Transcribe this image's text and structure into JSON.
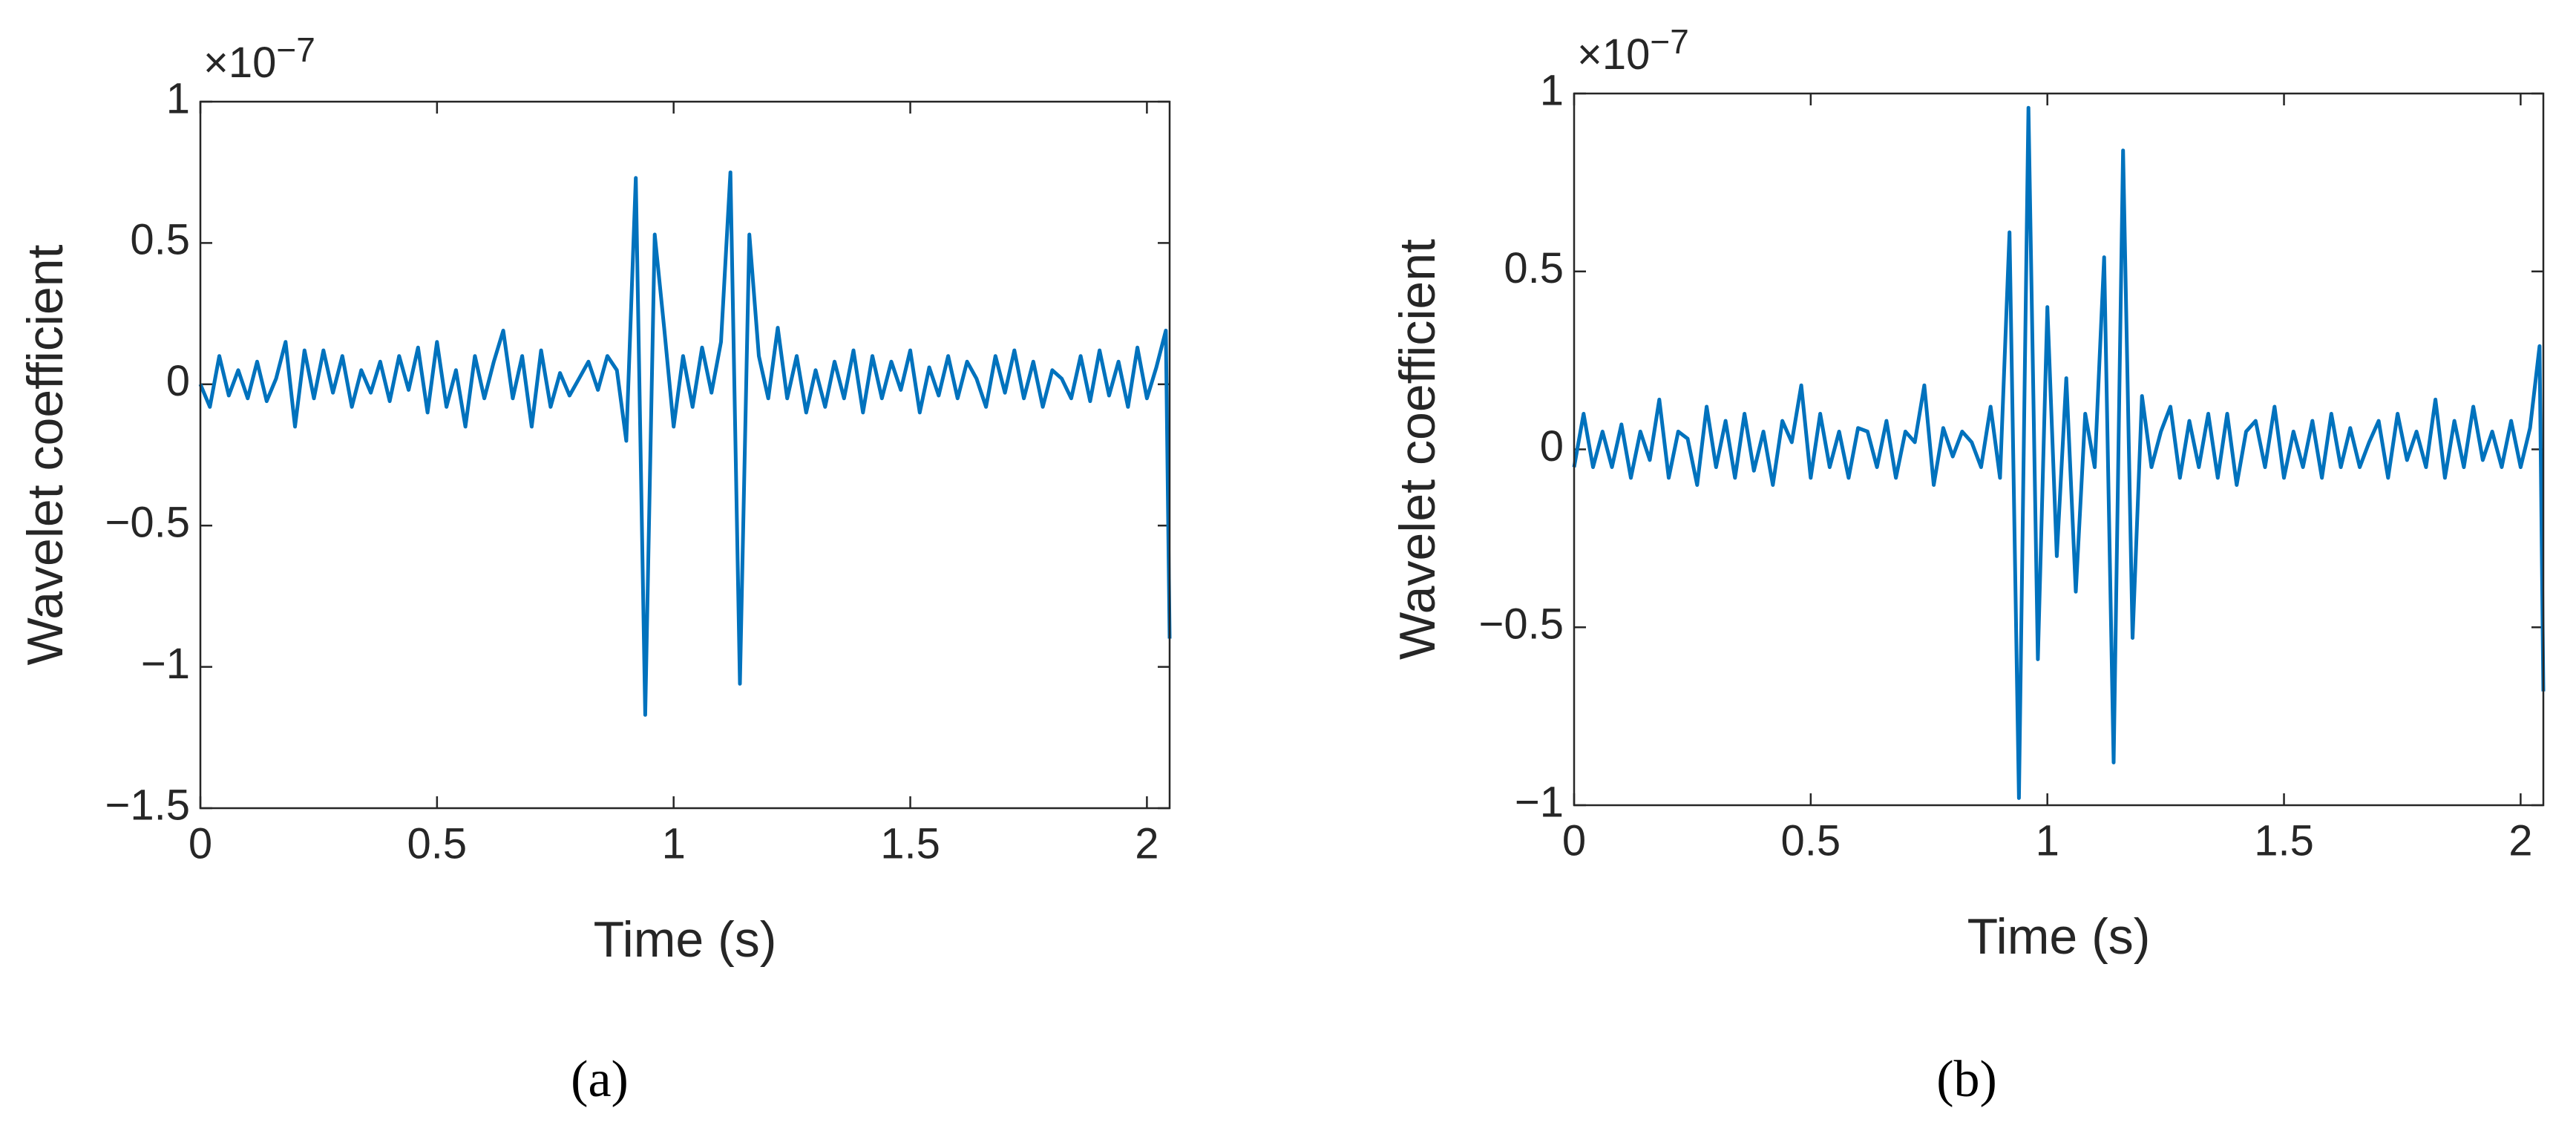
{
  "chart_data": [
    {
      "type": "line",
      "panel_label": "(a)",
      "xlabel": "Time (s)",
      "ylabel": "Wavelet coefficient",
      "y_multiplier": "×10",
      "y_multiplier_exponent": "−7",
      "color": "#0072bd",
      "xlim": [
        0,
        2.048
      ],
      "ylim": [
        -1.5,
        1
      ],
      "xticks": [
        0,
        0.5,
        1,
        1.5,
        2
      ],
      "yticks": [
        {
          "value": -1.5,
          "label": "−1.5"
        },
        {
          "value": -1,
          "label": "−1"
        },
        {
          "value": -0.5,
          "label": "−0.5"
        },
        0,
        0.5,
        1
      ],
      "x": [
        0,
        0.02,
        0.04,
        0.06,
        0.08,
        0.1,
        0.12,
        0.14,
        0.16,
        0.18,
        0.2,
        0.22,
        0.24,
        0.26,
        0.28,
        0.3,
        0.32,
        0.34,
        0.36,
        0.38,
        0.4,
        0.42,
        0.44,
        0.46,
        0.48,
        0.5,
        0.52,
        0.54,
        0.56,
        0.58,
        0.6,
        0.62,
        0.64,
        0.66,
        0.68,
        0.7,
        0.72,
        0.74,
        0.76,
        0.78,
        0.8,
        0.82,
        0.84,
        0.86,
        0.88,
        0.9,
        0.92,
        0.94,
        0.96,
        0.98,
        1,
        1.02,
        1.04,
        1.06,
        1.08,
        1.1,
        1.12,
        1.14,
        1.16,
        1.18,
        1.2,
        1.22,
        1.24,
        1.26,
        1.28,
        1.3,
        1.32,
        1.34,
        1.36,
        1.38,
        1.4,
        1.42,
        1.44,
        1.46,
        1.48,
        1.5,
        1.52,
        1.54,
        1.56,
        1.58,
        1.6,
        1.62,
        1.64,
        1.66,
        1.68,
        1.7,
        1.72,
        1.74,
        1.76,
        1.78,
        1.8,
        1.82,
        1.84,
        1.86,
        1.88,
        1.9,
        1.92,
        1.94,
        1.96,
        1.98,
        2,
        2.02,
        2.04,
        2.048
      ],
      "values": [
        0,
        -0.08,
        0.1,
        -0.04,
        0.05,
        -0.05,
        0.08,
        -0.06,
        0.02,
        0.15,
        -0.15,
        0.12,
        -0.05,
        0.12,
        -0.03,
        0.1,
        -0.08,
        0.05,
        -0.03,
        0.08,
        -0.06,
        0.1,
        -0.02,
        0.13,
        -0.1,
        0.15,
        -0.08,
        0.05,
        -0.15,
        0.1,
        -0.05,
        0.08,
        0.19,
        -0.05,
        0.1,
        -0.15,
        0.12,
        -0.08,
        0.04,
        -0.04,
        0.02,
        0.08,
        -0.02,
        0.1,
        0.05,
        -0.2,
        0.73,
        -1.17,
        0.53,
        0.2,
        -0.15,
        0.1,
        -0.08,
        0.13,
        -0.03,
        0.15,
        0.75,
        -1.06,
        0.53,
        0.1,
        -0.05,
        0.2,
        -0.05,
        0.1,
        -0.1,
        0.05,
        -0.08,
        0.08,
        -0.05,
        0.12,
        -0.1,
        0.1,
        -0.05,
        0.08,
        -0.02,
        0.12,
        -0.1,
        0.06,
        -0.04,
        0.1,
        -0.05,
        0.08,
        0.02,
        -0.08,
        0.1,
        -0.03,
        0.12,
        -0.05,
        0.08,
        -0.08,
        0.05,
        0.02,
        -0.05,
        0.1,
        -0.06,
        0.12,
        -0.04,
        0.08,
        -0.08,
        0.13,
        -0.05,
        0.06,
        0.19,
        -0.9
      ]
    },
    {
      "type": "line",
      "panel_label": "(b)",
      "xlabel": "Time (s)",
      "ylabel": "Wavelet coefficient",
      "y_multiplier": "×10",
      "y_multiplier_exponent": "−7",
      "color": "#0072bd",
      "xlim": [
        0,
        2.048
      ],
      "ylim": [
        -1,
        1
      ],
      "xticks": [
        0,
        0.5,
        1,
        1.5,
        2
      ],
      "yticks": [
        {
          "value": -1,
          "label": "−1"
        },
        {
          "value": -0.5,
          "label": "−0.5"
        },
        0,
        0.5,
        1
      ],
      "x": [
        0,
        0.02,
        0.04,
        0.06,
        0.08,
        0.1,
        0.12,
        0.14,
        0.16,
        0.18,
        0.2,
        0.22,
        0.24,
        0.26,
        0.28,
        0.3,
        0.32,
        0.34,
        0.36,
        0.38,
        0.4,
        0.42,
        0.44,
        0.46,
        0.48,
        0.5,
        0.52,
        0.54,
        0.56,
        0.58,
        0.6,
        0.62,
        0.64,
        0.66,
        0.68,
        0.7,
        0.72,
        0.74,
        0.76,
        0.78,
        0.8,
        0.82,
        0.84,
        0.86,
        0.88,
        0.9,
        0.92,
        0.94,
        0.96,
        0.98,
        1,
        1.02,
        1.04,
        1.06,
        1.08,
        1.1,
        1.12,
        1.14,
        1.16,
        1.18,
        1.2,
        1.22,
        1.24,
        1.26,
        1.28,
        1.3,
        1.32,
        1.34,
        1.36,
        1.38,
        1.4,
        1.42,
        1.44,
        1.46,
        1.48,
        1.5,
        1.52,
        1.54,
        1.56,
        1.58,
        1.6,
        1.62,
        1.64,
        1.66,
        1.68,
        1.7,
        1.72,
        1.74,
        1.76,
        1.78,
        1.8,
        1.82,
        1.84,
        1.86,
        1.88,
        1.9,
        1.92,
        1.94,
        1.96,
        1.98,
        2,
        2.02,
        2.04,
        2.048
      ],
      "values": [
        -0.05,
        0.1,
        -0.05,
        0.05,
        -0.05,
        0.07,
        -0.08,
        0.05,
        -0.03,
        0.14,
        -0.08,
        0.05,
        0.03,
        -0.1,
        0.12,
        -0.05,
        0.08,
        -0.08,
        0.1,
        -0.06,
        0.05,
        -0.1,
        0.08,
        0.02,
        0.18,
        -0.08,
        0.1,
        -0.05,
        0.05,
        -0.08,
        0.06,
        0.05,
        -0.05,
        0.08,
        -0.08,
        0.05,
        0.02,
        0.18,
        -0.1,
        0.06,
        -0.02,
        0.05,
        0.02,
        -0.05,
        0.12,
        -0.08,
        0.61,
        -0.98,
        0.96,
        -0.59,
        0.4,
        -0.3,
        0.2,
        -0.4,
        0.1,
        -0.05,
        0.54,
        -0.88,
        0.84,
        -0.53,
        0.15,
        -0.05,
        0.05,
        0.12,
        -0.08,
        0.08,
        -0.05,
        0.1,
        -0.08,
        0.1,
        -0.1,
        0.05,
        0.08,
        -0.05,
        0.12,
        -0.08,
        0.05,
        -0.05,
        0.08,
        -0.08,
        0.1,
        -0.05,
        0.06,
        -0.05,
        0.02,
        0.08,
        -0.08,
        0.1,
        -0.03,
        0.05,
        -0.05,
        0.14,
        -0.08,
        0.08,
        -0.05,
        0.12,
        -0.03,
        0.05,
        -0.05,
        0.08,
        -0.05,
        0.06,
        0.29,
        -0.68
      ]
    }
  ]
}
